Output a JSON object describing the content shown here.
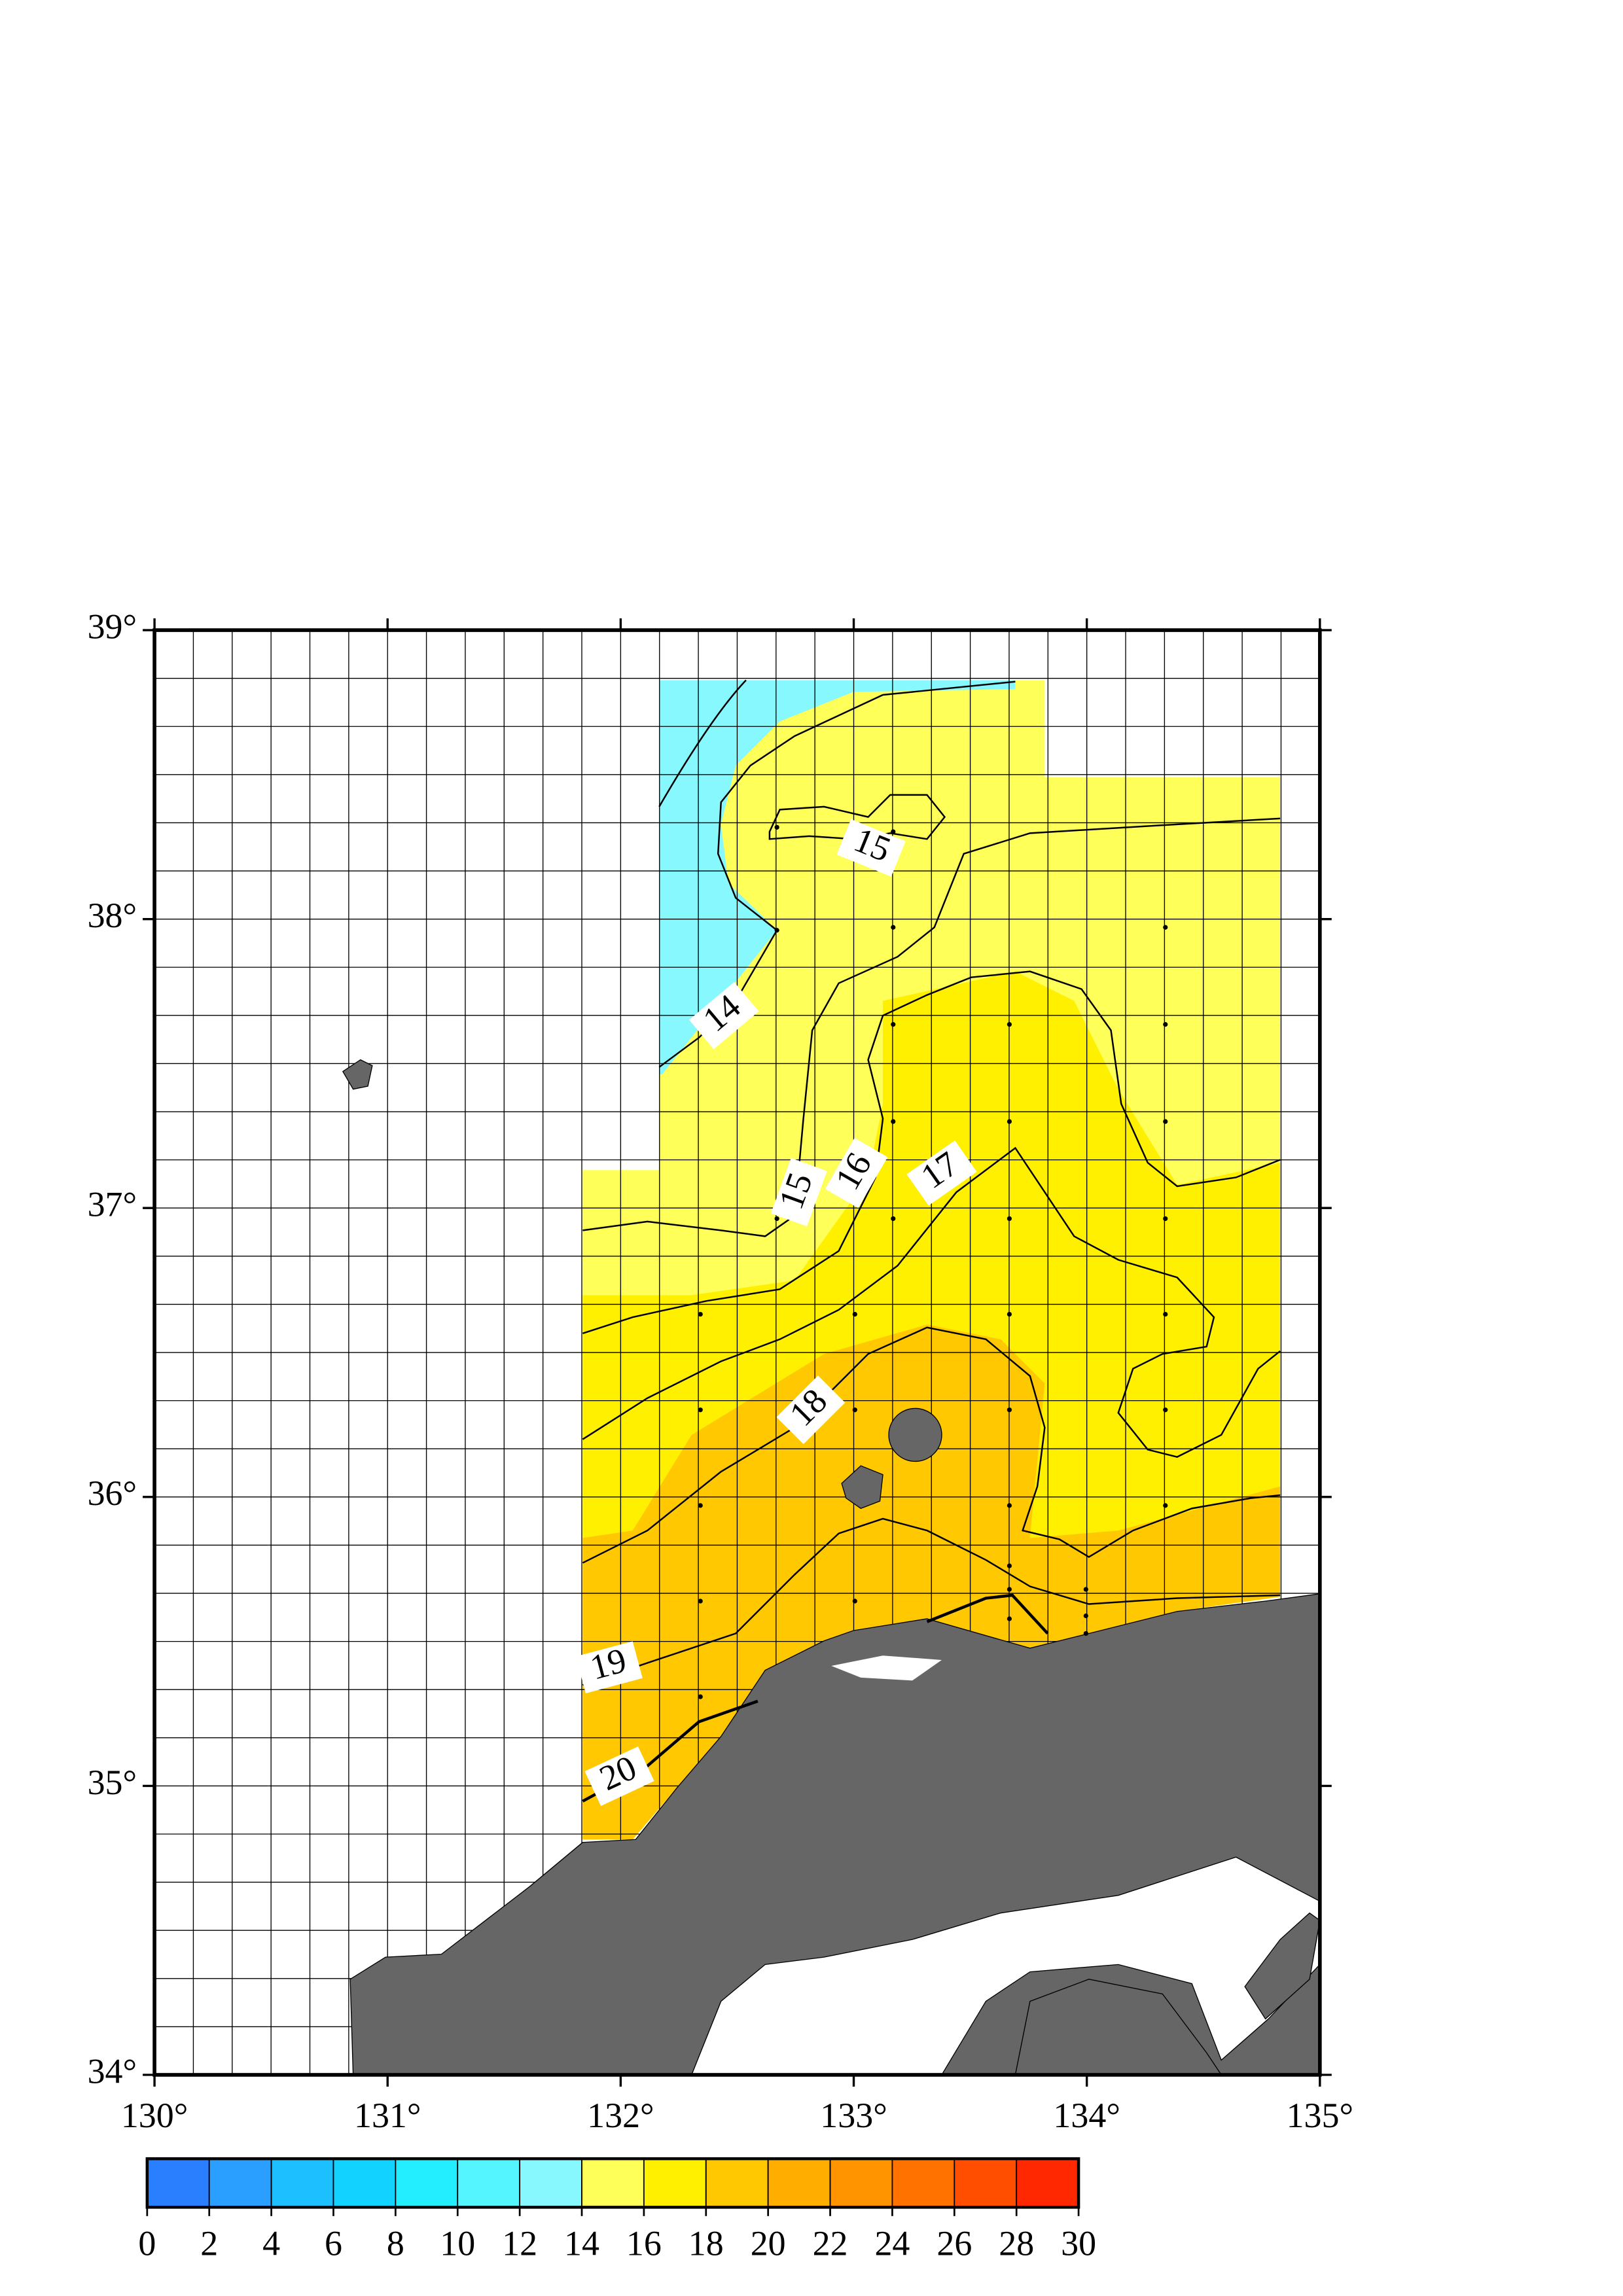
{
  "map": {
    "lonlim": [
      130,
      135
    ],
    "latlim": [
      34,
      39
    ],
    "lon_ticks": [
      {
        "value": 130,
        "label": "130°"
      },
      {
        "value": 131,
        "label": "131°"
      },
      {
        "value": 132,
        "label": "132°"
      },
      {
        "value": 133,
        "label": "133°"
      },
      {
        "value": 134,
        "label": "134°"
      },
      {
        "value": 135,
        "label": "135°"
      }
    ],
    "lat_ticks": [
      {
        "value": 34,
        "label": "34°"
      },
      {
        "value": 35,
        "label": "35°"
      },
      {
        "value": 36,
        "label": "36°"
      },
      {
        "value": 37,
        "label": "37°"
      },
      {
        "value": 38,
        "label": "38°"
      },
      {
        "value": 39,
        "label": "39°"
      }
    ],
    "contour_labels": [
      "14",
      "15",
      "15",
      "16",
      "17",
      "18",
      "19",
      "20"
    ],
    "land_color": "#666666",
    "colorbar": {
      "ticks": [
        0,
        2,
        4,
        6,
        8,
        10,
        12,
        14,
        16,
        18,
        20,
        22,
        24,
        26,
        28,
        30
      ],
      "colors": [
        "#2a7fff",
        "#2a9fff",
        "#1ebfff",
        "#12d2ff",
        "#22eeff",
        "#55f5ff",
        "#88f8ff",
        "#ffff5a",
        "#fff000",
        "#ffc800",
        "#ffae00",
        "#ff9400",
        "#ff7200",
        "#ff4e00",
        "#ff2800"
      ]
    }
  }
}
